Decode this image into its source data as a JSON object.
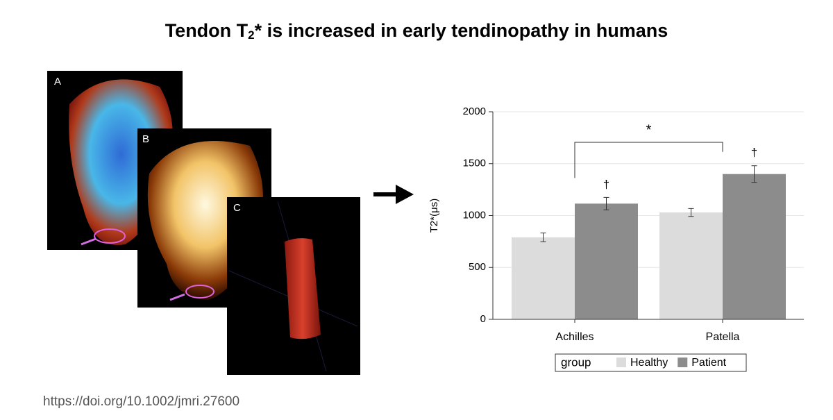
{
  "header": {
    "title_parts": [
      "Tendon T",
      "2",
      "* is increased in early tendinopathy  in humans"
    ]
  },
  "panels": [
    {
      "label": "A"
    },
    {
      "label": "B"
    },
    {
      "label": "C"
    }
  ],
  "source": "https://doi.org/10.1002/jmri.27600",
  "chart_data": {
    "type": "bar",
    "categories": [
      "Achilles",
      "Patella"
    ],
    "series": [
      {
        "name": "Healthy",
        "color": "#dcdcdc",
        "values": [
          790,
          1030
        ],
        "errors": [
          42,
          38
        ]
      },
      {
        "name": "Patient",
        "color": "#8c8c8c",
        "values": [
          1115,
          1400
        ],
        "errors": [
          60,
          80
        ]
      }
    ],
    "ylabel": "T2*(μs)",
    "ylim": [
      0,
      2000
    ],
    "yticks": [
      0,
      500,
      1000,
      1500,
      2000
    ],
    "grid": true,
    "legend_title": "group",
    "legend": "bottom",
    "annotations": [
      "*",
      "†",
      "†"
    ]
  }
}
